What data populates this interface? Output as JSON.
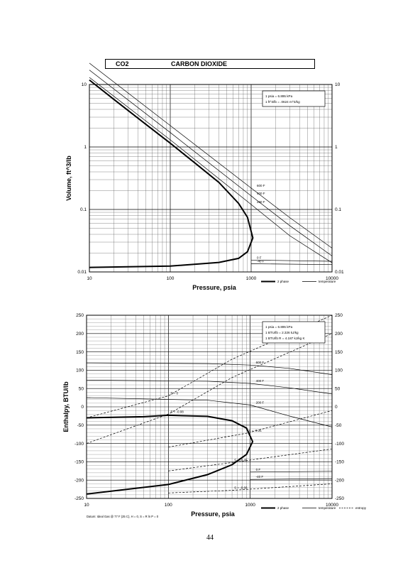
{
  "header": {
    "code": "CO2",
    "name": "CARBON DIOXIDE"
  },
  "page_number": "44",
  "chart_data": [
    {
      "type": "line",
      "x_scale": "log",
      "y_scale": "log",
      "xlim": [
        10,
        10000
      ],
      "ylim": [
        0.01,
        10
      ],
      "xlabel": "Pressure,  psia",
      "ylabel": "Volume, ft^3/lb",
      "x_ticks": [
        "10",
        "100",
        "1000",
        "10000"
      ],
      "y_ticks": [
        "0.01",
        "0.1",
        "1",
        "10"
      ],
      "grid": true,
      "conversion_box": [
        "1 psia = 6.895 kPa",
        "1 ft^3/lb = .0624 m^3/kg"
      ],
      "legend": [
        "2 phase",
        "temperature"
      ],
      "two_phase": [
        {
          "x": 10,
          "y": 11.8
        },
        {
          "x": 20,
          "y": 5.8
        },
        {
          "x": 50,
          "y": 2.3
        },
        {
          "x": 100,
          "y": 1.15
        },
        {
          "x": 200,
          "y": 0.56
        },
        {
          "x": 400,
          "y": 0.27
        },
        {
          "x": 700,
          "y": 0.125
        },
        {
          "x": 900,
          "y": 0.075
        },
        {
          "x": 1050,
          "y": 0.035
        },
        {
          "x": 900,
          "y": 0.021
        },
        {
          "x": 700,
          "y": 0.0165
        },
        {
          "x": 400,
          "y": 0.0142
        },
        {
          "x": 100,
          "y": 0.0124
        },
        {
          "x": 10,
          "y": 0.0118
        }
      ],
      "isotherms": [
        {
          "label": "600 F",
          "points": [
            {
              "x": 10,
              "y": 22
            },
            {
              "x": 100,
              "y": 2.2
            },
            {
              "x": 1000,
              "y": 0.22
            },
            {
              "x": 3000,
              "y": 0.074
            },
            {
              "x": 10000,
              "y": 0.024
            }
          ]
        },
        {
          "label": "400 F",
          "points": [
            {
              "x": 10,
              "y": 17
            },
            {
              "x": 100,
              "y": 1.7
            },
            {
              "x": 1000,
              "y": 0.165
            },
            {
              "x": 3000,
              "y": 0.055
            },
            {
              "x": 10000,
              "y": 0.018
            }
          ]
        },
        {
          "label": "200 F",
          "points": [
            {
              "x": 10,
              "y": 13
            },
            {
              "x": 100,
              "y": 1.3
            },
            {
              "x": 1000,
              "y": 0.12
            },
            {
              "x": 3000,
              "y": 0.038
            },
            {
              "x": 10000,
              "y": 0.014
            }
          ]
        },
        {
          "label": "0 F",
          "points": [
            {
              "x": 1000,
              "y": 0.0155
            },
            {
              "x": 10000,
              "y": 0.0148
            }
          ]
        },
        {
          "label": "-40 F",
          "points": [
            {
              "x": 1000,
              "y": 0.0135
            },
            {
              "x": 10000,
              "y": 0.0131
            }
          ]
        }
      ]
    },
    {
      "type": "line",
      "x_scale": "log",
      "xlim": [
        10,
        10000
      ],
      "ylim": [
        -250,
        250
      ],
      "xlabel": "Pressure,  psia",
      "ylabel": "Enthalpy, BTU/lb",
      "x_ticks": [
        "10",
        "100",
        "1000",
        "10000"
      ],
      "y_ticks": [
        "-250",
        "-200",
        "-150",
        "-100",
        "-50",
        "0",
        "50",
        "100",
        "150",
        "200",
        "250"
      ],
      "grid": true,
      "conversion_box": [
        "1 psia = 6.895 kPa",
        "1 BTU/lb = 2.326 kJ/kg",
        "1 BTU/lb R = 4.187 kJ/kg K"
      ],
      "legend": [
        "2 phase",
        "temperature",
        "entropy"
      ],
      "footnote": "Datum: Ideal Gas @ 77 F (25 C),  H = 0,  S = R ln P = 0",
      "two_phase": [
        {
          "x": 10,
          "y": -30
        },
        {
          "x": 50,
          "y": -27
        },
        {
          "x": 100,
          "y": -23
        },
        {
          "x": 300,
          "y": -26
        },
        {
          "x": 600,
          "y": -38
        },
        {
          "x": 900,
          "y": -58
        },
        {
          "x": 1070,
          "y": -95
        },
        {
          "x": 900,
          "y": -130
        },
        {
          "x": 600,
          "y": -158
        },
        {
          "x": 300,
          "y": -185
        },
        {
          "x": 100,
          "y": -212
        },
        {
          "x": 10,
          "y": -238
        }
      ],
      "isotherms": [
        {
          "label": "600 F",
          "points": [
            {
              "x": 10,
              "y": 120
            },
            {
              "x": 300,
              "y": 118
            },
            {
              "x": 1000,
              "y": 114
            },
            {
              "x": 3000,
              "y": 105
            },
            {
              "x": 10000,
              "y": 88
            }
          ]
        },
        {
          "label": "400 F",
          "points": [
            {
              "x": 10,
              "y": 73
            },
            {
              "x": 300,
              "y": 70
            },
            {
              "x": 1000,
              "y": 64
            },
            {
              "x": 3000,
              "y": 52
            },
            {
              "x": 10000,
              "y": 35
            }
          ]
        },
        {
          "label": "200 F",
          "points": [
            {
              "x": 10,
              "y": 25
            },
            {
              "x": 300,
              "y": 18
            },
            {
              "x": 1000,
              "y": 5
            },
            {
              "x": 3000,
              "y": -25
            },
            {
              "x": 10000,
              "y": -55
            }
          ]
        },
        {
          "label": "0 F",
          "points": [
            {
              "x": 1000,
              "y": -178
            },
            {
              "x": 10000,
              "y": -176
            }
          ]
        },
        {
          "label": "-40 F",
          "points": [
            {
              "x": 1000,
              "y": -198
            },
            {
              "x": 10000,
              "y": -196
            }
          ]
        }
      ],
      "entropy_lines": [
        {
          "label": "S = 0",
          "points": [
            {
              "x": 10,
              "y": -30
            },
            {
              "x": 100,
              "y": 30
            },
            {
              "x": 600,
              "y": 130
            },
            {
              "x": 10000,
              "y": 250
            }
          ]
        },
        {
          "label": "S = -0.08",
          "points": [
            {
              "x": 10,
              "y": -100
            },
            {
              "x": 100,
              "y": -20
            },
            {
              "x": 600,
              "y": 80
            },
            {
              "x": 10000,
              "y": 200
            }
          ]
        },
        {
          "label": "S = -0.31",
          "points": [
            {
              "x": 100,
              "y": -110
            },
            {
              "x": 900,
              "y": -72
            },
            {
              "x": 10000,
              "y": -10
            }
          ]
        },
        {
          "label": "S = -0.45",
          "points": [
            {
              "x": 100,
              "y": -175
            },
            {
              "x": 600,
              "y": -152
            },
            {
              "x": 10000,
              "y": -115
            }
          ]
        },
        {
          "label": "S = -0.66",
          "points": [
            {
              "x": 100,
              "y": -235
            },
            {
              "x": 600,
              "y": -228
            },
            {
              "x": 10000,
              "y": -210
            }
          ]
        }
      ]
    }
  ]
}
